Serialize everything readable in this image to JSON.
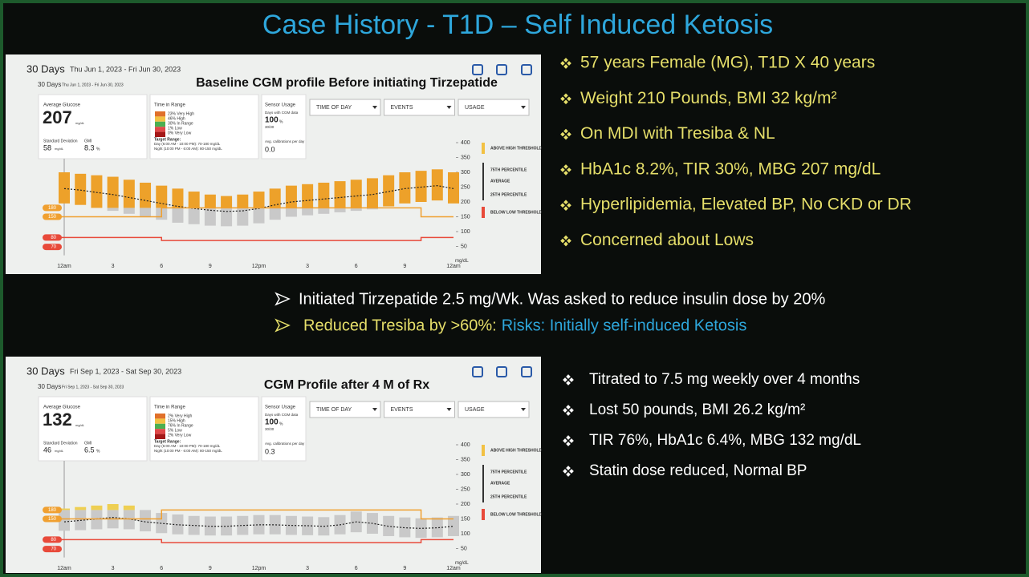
{
  "header": {
    "title": "Case History - T1D – Self Induced Ketosis"
  },
  "bullets_top": [
    "57 years  Female (MG), T1D X 40 years",
    "Weight 210 Pounds, BMI 32 kg/m²",
    "On MDI with Tresiba & NL",
    "HbA1c 8.2%, TIR 30%, MBG 207 mg/dL",
    "Hyperlipidemia, Elevated BP, No CKD or DR",
    "Concerned about Lows"
  ],
  "middle": {
    "line1": "Initiated Tirzepatide 2.5 mg/Wk. Was asked to reduce insulin dose by 20%",
    "line2_a": "Reduced Tresiba by >60%:",
    "line2_b": "Risks: Initially self-induced Ketosis"
  },
  "bullets_bottom": [
    "Titrated to 7.5 mg weekly over 4 months",
    "Lost 50 pounds, BMI 26.2 kg/m²",
    "TIR 76%, HbA1c 6.4%, MBG 132 mg/dL",
    "Statin dose reduced, Normal BP"
  ],
  "panels": [
    {
      "period": "30 Days",
      "dates": "Thu Jun 1, 2023 - Fri Jun 30, 2023",
      "caption": "Baseline CGM profile Before initiating Tirzepatide",
      "inner_period": "30 Days",
      "inner_dates": "Thu Jun 1, 2023 - Fri Jun 30, 2023",
      "stats": {
        "avg_label": "Average Glucose",
        "avg": 207,
        "unit": "mg/dL",
        "sd_label": "Standard Deviation",
        "sd": 58,
        "gmi_label": "GMI",
        "gmi": 8.3,
        "pct": "%"
      },
      "tir": {
        "title": "Time in Range",
        "items": [
          "23% Very High",
          "46% High",
          "30% In Range",
          "1% Low",
          "0% Very Low"
        ],
        "target_title": "Target Range:",
        "target_day": "Day (6:00 AM - 10:00 PM): 70-180 mg/dL",
        "target_night": "Night (10:00 PM - 6:00 AM): 80-150 mg/dL"
      },
      "sensor": {
        "title": "Sensor Usage",
        "days_label": "Days with CGM data",
        "days": 100,
        "days_count": "30/30",
        "cal_label": "Avg. calibrations per day",
        "cal": "0.0"
      },
      "dropdowns": [
        "TIME OF DAY",
        "EVENTS",
        "USAGE"
      ],
      "legend": [
        "ABOVE HIGH THRESHOLD",
        "75TH PERCENTILE",
        "AVERAGE",
        "25TH PERCENTILE",
        "BELOW LOW THRESHOLD"
      ],
      "thresholds": [
        180,
        150,
        80,
        70
      ],
      "chart": {
        "ylim": [
          20,
          400
        ],
        "yticks": [
          50,
          100,
          150,
          200,
          250,
          300,
          350,
          400
        ],
        "yunit": "mg/dL",
        "x_labels": [
          "12am",
          "3",
          "6",
          "9",
          "12pm",
          "3",
          "6",
          "9",
          "12am"
        ],
        "median": [
          245,
          240,
          232,
          225,
          215,
          205,
          195,
          185,
          178,
          172,
          168,
          170,
          178,
          190,
          200,
          205,
          210,
          215,
          220,
          225,
          235,
          245,
          250,
          255,
          245
        ],
        "p25": [
          195,
          190,
          180,
          170,
          160,
          150,
          140,
          130,
          125,
          120,
          118,
          120,
          128,
          140,
          150,
          155,
          160,
          165,
          170,
          175,
          185,
          195,
          200,
          205,
          195
        ],
        "p75": [
          300,
          295,
          290,
          285,
          275,
          265,
          255,
          245,
          235,
          225,
          220,
          225,
          235,
          245,
          255,
          260,
          265,
          270,
          275,
          280,
          290,
          300,
          305,
          310,
          300
        ]
      }
    },
    {
      "period": "30 Days",
      "dates": "Fri Sep 1, 2023 - Sat Sep 30, 2023",
      "caption": "CGM Profile after 4 M of Rx",
      "inner_period": "30 Days",
      "inner_dates": "Fri Sep 1, 2023 - Sat Sep 30, 2023",
      "stats": {
        "avg_label": "Average Glucose",
        "avg": 132,
        "unit": "mg/dL",
        "sd_label": "Standard Deviation",
        "sd": 46,
        "gmi_label": "GMI",
        "gmi": 6.5,
        "pct": "%"
      },
      "tir": {
        "title": "Time in Range",
        "items": [
          "2% Very High",
          "15% High",
          "76% In Range",
          "5% Low",
          "2% Very Low"
        ],
        "target_title": "Target Range:",
        "target_day": "Day (6:00 AM - 10:00 PM): 70-180 mg/dL",
        "target_night": "Night (10:00 PM - 6:00 AM): 80-150 mg/dL"
      },
      "sensor": {
        "title": "Sensor Usage",
        "days_label": "Days with CGM data",
        "days": 100,
        "days_count": "30/30",
        "cal_label": "Avg. calibrations per day",
        "cal": 0.3
      },
      "dropdowns": [
        "TIME OF DAY",
        "EVENTS",
        "USAGE"
      ],
      "legend": [
        "ABOVE HIGH THRESHOLD",
        "75TH PERCENTILE",
        "AVERAGE",
        "25TH PERCENTILE",
        "BELOW LOW THRESHOLD"
      ],
      "thresholds": [
        180,
        150,
        80,
        70
      ],
      "chart": {
        "ylim": [
          20,
          400
        ],
        "yticks": [
          50,
          100,
          150,
          200,
          250,
          300,
          350,
          400
        ],
        "yunit": "mg/dL",
        "x_labels": [
          "12am",
          "3",
          "6",
          "9",
          "12pm",
          "3",
          "6",
          "9",
          "12am"
        ],
        "median": [
          140,
          145,
          150,
          155,
          150,
          140,
          135,
          130,
          128,
          125,
          125,
          128,
          130,
          130,
          128,
          127,
          125,
          130,
          140,
          135,
          125,
          120,
          118,
          120,
          125
        ],
        "p25": [
          110,
          112,
          115,
          118,
          115,
          108,
          102,
          98,
          96,
          94,
          94,
          96,
          98,
          98,
          96,
          95,
          94,
          98,
          105,
          100,
          92,
          88,
          86,
          88,
          92
        ],
        "p75": [
          185,
          190,
          195,
          200,
          195,
          180,
          170,
          165,
          160,
          158,
          158,
          160,
          163,
          163,
          160,
          158,
          156,
          163,
          175,
          170,
          160,
          155,
          152,
          155,
          160
        ]
      }
    }
  ]
}
